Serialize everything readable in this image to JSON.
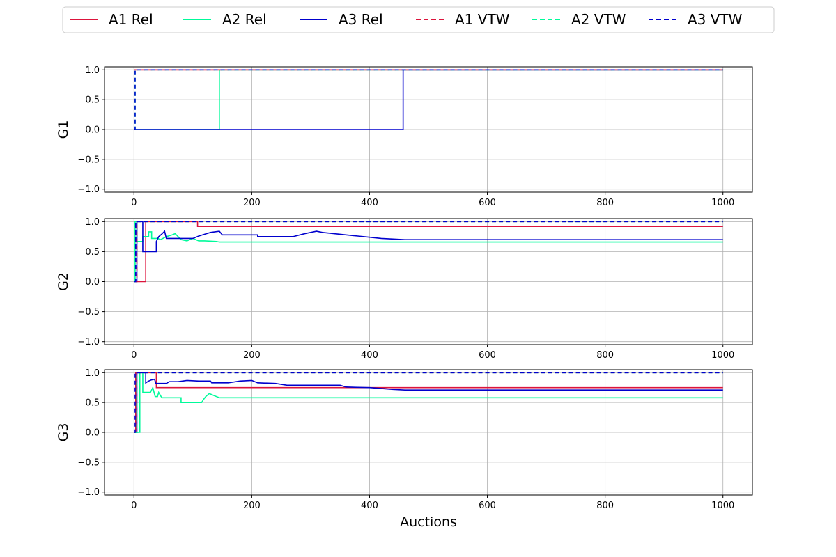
{
  "chart_data": {
    "type": "line",
    "xlabel": "Auctions",
    "xlim": [
      -50,
      1050
    ],
    "xticks": [
      0,
      200,
      400,
      600,
      800,
      1000
    ],
    "ylim": [
      -1.05,
      1.05
    ],
    "yticks": [
      -1.0,
      -0.5,
      0.0,
      0.5,
      1.0
    ],
    "ytick_labels": [
      "−1.0",
      "−0.5",
      "0.0",
      "0.5",
      "1.0"
    ],
    "grid": true,
    "legend": {
      "placement": "top-center",
      "entries": [
        {
          "label": "A1 Rel",
          "color": "#dc143c",
          "style": "solid"
        },
        {
          "label": "A2 Rel",
          "color": "#00fa9a",
          "style": "solid"
        },
        {
          "label": "A3 Rel",
          "color": "#0000cd",
          "style": "solid"
        },
        {
          "label": "A1 VTW",
          "color": "#dc143c",
          "style": "dashed"
        },
        {
          "label": "A2 VTW",
          "color": "#00fa9a",
          "style": "dashed"
        },
        {
          "label": "A3 VTW",
          "color": "#0000cd",
          "style": "dashed"
        }
      ]
    },
    "subplots": [
      {
        "ylabel": "G1",
        "series": [
          {
            "name": "A1 Rel",
            "color": "#dc143c",
            "style": "solid",
            "points": [
              [
                0,
                1
              ],
              [
                1000,
                1
              ]
            ]
          },
          {
            "name": "A2 Rel",
            "color": "#00fa9a",
            "style": "solid",
            "points": [
              [
                0,
                0
              ],
              [
                2,
                0
              ],
              [
                145,
                0
              ],
              [
                145,
                1
              ],
              [
                1000,
                1
              ]
            ]
          },
          {
            "name": "A3 Rel",
            "color": "#0000cd",
            "style": "solid",
            "points": [
              [
                0,
                0
              ],
              [
                2,
                0
              ],
              [
                457,
                0
              ],
              [
                457,
                1
              ],
              [
                1000,
                1
              ]
            ]
          },
          {
            "name": "A1 VTW",
            "color": "#dc143c",
            "style": "dashed",
            "points": [
              [
                0,
                1
              ],
              [
                1000,
                1
              ]
            ]
          },
          {
            "name": "A2 VTW",
            "color": "#00fa9a",
            "style": "dashed",
            "points": [
              [
                0,
                0
              ],
              [
                2,
                0
              ],
              [
                2,
                1
              ],
              [
                1000,
                1
              ]
            ]
          },
          {
            "name": "A3 VTW",
            "color": "#0000cd",
            "style": "dashed",
            "points": [
              [
                0,
                0
              ],
              [
                2,
                0
              ],
              [
                2,
                1
              ],
              [
                1000,
                1
              ]
            ]
          }
        ]
      },
      {
        "ylabel": "G2",
        "series": [
          {
            "name": "A1 Rel",
            "color": "#dc143c",
            "style": "solid",
            "points": [
              [
                0,
                0
              ],
              [
                20,
                0
              ],
              [
                20,
                1
              ],
              [
                108,
                1
              ],
              [
                108,
                0.92
              ],
              [
                1000,
                0.92
              ]
            ]
          },
          {
            "name": "A2 Rel",
            "color": "#00fa9a",
            "style": "solid",
            "points": [
              [
                0,
                0
              ],
              [
                2,
                0
              ],
              [
                2,
                1
              ],
              [
                5,
                1
              ],
              [
                5,
                0.67
              ],
              [
                15,
                0.67
              ],
              [
                15,
                0.75
              ],
              [
                25,
                0.75
              ],
              [
                25,
                0.83
              ],
              [
                30,
                0.83
              ],
              [
                30,
                0.72
              ],
              [
                40,
                0.72
              ],
              [
                45,
                0.7
              ],
              [
                55,
                0.75
              ],
              [
                65,
                0.78
              ],
              [
                70,
                0.8
              ],
              [
                75,
                0.75
              ],
              [
                80,
                0.7
              ],
              [
                90,
                0.68
              ],
              [
                100,
                0.72
              ],
              [
                110,
                0.68
              ],
              [
                120,
                0.68
              ],
              [
                140,
                0.67
              ],
              [
                145,
                0.66
              ],
              [
                1000,
                0.66
              ]
            ]
          },
          {
            "name": "A3 Rel",
            "color": "#0000cd",
            "style": "solid",
            "points": [
              [
                0,
                0
              ],
              [
                5,
                0
              ],
              [
                5,
                1
              ],
              [
                15,
                1
              ],
              [
                15,
                0.5
              ],
              [
                38,
                0.5
              ],
              [
                38,
                0.67
              ],
              [
                42,
                0.75
              ],
              [
                48,
                0.8
              ],
              [
                52,
                0.84
              ],
              [
                55,
                0.72
              ],
              [
                100,
                0.72
              ],
              [
                110,
                0.76
              ],
              [
                120,
                0.79
              ],
              [
                130,
                0.82
              ],
              [
                145,
                0.84
              ],
              [
                150,
                0.78
              ],
              [
                210,
                0.78
              ],
              [
                210,
                0.75
              ],
              [
                270,
                0.75
              ],
              [
                290,
                0.8
              ],
              [
                310,
                0.84
              ],
              [
                320,
                0.82
              ],
              [
                340,
                0.8
              ],
              [
                360,
                0.78
              ],
              [
                380,
                0.76
              ],
              [
                400,
                0.74
              ],
              [
                420,
                0.72
              ],
              [
                440,
                0.71
              ],
              [
                460,
                0.7
              ],
              [
                1000,
                0.7
              ]
            ]
          },
          {
            "name": "A1 VTW",
            "color": "#dc143c",
            "style": "dashed",
            "points": [
              [
                0,
                0
              ],
              [
                5,
                0
              ],
              [
                5,
                1
              ],
              [
                1000,
                1
              ]
            ]
          },
          {
            "name": "A2 VTW",
            "color": "#00fa9a",
            "style": "dashed",
            "points": [
              [
                0,
                0
              ],
              [
                2,
                0
              ],
              [
                2,
                1
              ],
              [
                1000,
                1
              ]
            ]
          },
          {
            "name": "A3 VTW",
            "color": "#0000cd",
            "style": "dashed",
            "points": [
              [
                0,
                0
              ],
              [
                3,
                0
              ],
              [
                3,
                1
              ],
              [
                1000,
                1
              ]
            ]
          }
        ]
      },
      {
        "ylabel": "G3",
        "series": [
          {
            "name": "A1 Rel",
            "color": "#dc143c",
            "style": "solid",
            "points": [
              [
                0,
                0
              ],
              [
                3,
                0
              ],
              [
                3,
                1
              ],
              [
                38,
                1
              ],
              [
                38,
                0.75
              ],
              [
                1000,
                0.75
              ]
            ]
          },
          {
            "name": "A2 Rel",
            "color": "#00fa9a",
            "style": "solid",
            "points": [
              [
                0,
                0
              ],
              [
                10,
                0
              ],
              [
                10,
                1
              ],
              [
                15,
                1
              ],
              [
                15,
                0.67
              ],
              [
                28,
                0.67
              ],
              [
                32,
                0.75
              ],
              [
                36,
                0.6
              ],
              [
                40,
                0.6
              ],
              [
                42,
                0.67
              ],
              [
                46,
                0.6
              ],
              [
                48,
                0.58
              ],
              [
                80,
                0.58
              ],
              [
                80,
                0.5
              ],
              [
                115,
                0.5
              ],
              [
                118,
                0.55
              ],
              [
                122,
                0.6
              ],
              [
                128,
                0.65
              ],
              [
                135,
                0.62
              ],
              [
                140,
                0.6
              ],
              [
                145,
                0.58
              ],
              [
                1000,
                0.58
              ]
            ]
          },
          {
            "name": "A3 Rel",
            "color": "#0000cd",
            "style": "solid",
            "points": [
              [
                0,
                0
              ],
              [
                5,
                0
              ],
              [
                5,
                1
              ],
              [
                20,
                1
              ],
              [
                20,
                0.83
              ],
              [
                25,
                0.86
              ],
              [
                30,
                0.88
              ],
              [
                35,
                0.89
              ],
              [
                37,
                0.82
              ],
              [
                55,
                0.82
              ],
              [
                60,
                0.85
              ],
              [
                75,
                0.85
              ],
              [
                90,
                0.87
              ],
              [
                110,
                0.86
              ],
              [
                130,
                0.86
              ],
              [
                132,
                0.83
              ],
              [
                160,
                0.83
              ],
              [
                180,
                0.86
              ],
              [
                200,
                0.87
              ],
              [
                210,
                0.83
              ],
              [
                240,
                0.82
              ],
              [
                260,
                0.79
              ],
              [
                350,
                0.79
              ],
              [
                360,
                0.76
              ],
              [
                400,
                0.75
              ],
              [
                440,
                0.72
              ],
              [
                460,
                0.71
              ],
              [
                1000,
                0.71
              ]
            ]
          },
          {
            "name": "A1 VTW",
            "color": "#dc143c",
            "style": "dashed",
            "points": [
              [
                0,
                0
              ],
              [
                3,
                0
              ],
              [
                3,
                1
              ],
              [
                1000,
                1
              ]
            ]
          },
          {
            "name": "A2 VTW",
            "color": "#00fa9a",
            "style": "dashed",
            "points": [
              [
                0,
                0
              ],
              [
                5,
                0
              ],
              [
                5,
                1
              ],
              [
                1000,
                1
              ]
            ]
          },
          {
            "name": "A3 VTW",
            "color": "#0000cd",
            "style": "dashed",
            "points": [
              [
                0,
                0
              ],
              [
                2,
                0
              ],
              [
                2,
                1
              ],
              [
                1000,
                1
              ]
            ]
          }
        ]
      }
    ]
  }
}
